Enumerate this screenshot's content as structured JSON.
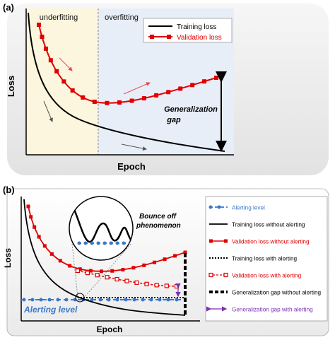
{
  "panel_a": {
    "tag": "(a)",
    "region_left": "underfitting",
    "region_right": "overfitting",
    "xlabel": "Epoch",
    "ylabel": "Loss",
    "legend": {
      "training": "Training loss",
      "validation": "Validation loss"
    },
    "annotation": "Generalization\ngap"
  },
  "panel_b": {
    "tag": "(b)",
    "xlabel": "Epoch",
    "ylabel": "Loss",
    "alert_label": "Alerting level",
    "bounce_label": "Bounce off\nphenomenon",
    "legend": [
      {
        "key": "alert",
        "label": "Alerting level",
        "color": "#3a78c8"
      },
      {
        "key": "train_no",
        "label": "Training loss without alerting",
        "color": "#000000"
      },
      {
        "key": "val_no",
        "label": "Validation loss without alerting",
        "color": "#e00000"
      },
      {
        "key": "train_yes",
        "label": "Training loss with alerting",
        "color": "#000000"
      },
      {
        "key": "val_yes",
        "label": "Validation loss with alerting",
        "color": "#e00000"
      },
      {
        "key": "gap_no",
        "label": "Generalization gap without alerting",
        "color": "#000000"
      },
      {
        "key": "gap_yes",
        "label": "Generalization gap with alerting",
        "color": "#7a2fb0"
      }
    ]
  },
  "colors": {
    "red": "#e00000",
    "blue": "#3a78c8",
    "purple": "#7a2fb0",
    "underfit_bg": "#fbf6dd",
    "overfit_bg": "#e8eef8"
  }
}
